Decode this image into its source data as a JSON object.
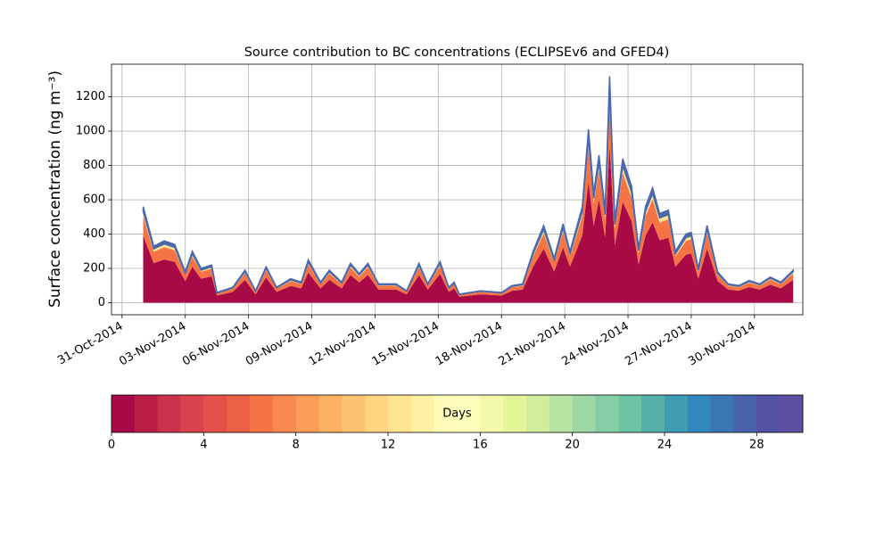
{
  "chart_data": {
    "type": "stacked_area",
    "title": "Source contribution to BC concentrations (ECLIPSEv6 and GFED4)",
    "y_label": "Surface concentration (ng m⁻³)",
    "x": [
      "2014-11-01T00:00",
      "2014-11-01T12:00",
      "2014-11-02T00:00",
      "2014-11-02T12:00",
      "2014-11-03T00:00",
      "2014-11-03T08:00",
      "2014-11-03T18:00",
      "2014-11-04T06:00",
      "2014-11-04T12:00",
      "2014-11-05T06:00",
      "2014-11-05T20:00",
      "2014-11-06T08:00",
      "2014-11-06T20:00",
      "2014-11-07T08:00",
      "2014-11-08T00:00",
      "2014-11-08T12:00",
      "2014-11-08T20:00",
      "2014-11-09T10:00",
      "2014-11-09T20:00",
      "2014-11-10T10:00",
      "2014-11-10T20:00",
      "2014-11-11T06:00",
      "2014-11-11T16:00",
      "2014-11-12T04:00",
      "2014-11-13T00:00",
      "2014-11-13T12:00",
      "2014-11-14T02:00",
      "2014-11-14T12:00",
      "2014-11-15T02:00",
      "2014-11-15T12:00",
      "2014-11-15T18:00",
      "2014-11-16T00:00",
      "2014-11-17T00:00",
      "2014-11-18T00:00",
      "2014-11-18T12:00",
      "2014-11-19T00:00",
      "2014-11-19T12:00",
      "2014-11-20T00:00",
      "2014-11-20T12:00",
      "2014-11-20T22:00",
      "2014-11-21T06:00",
      "2014-11-21T20:00",
      "2014-11-22T03:00",
      "2014-11-22T09:00",
      "2014-11-22T15:00",
      "2014-11-22T22:00",
      "2014-11-23T03:00",
      "2014-11-23T09:00",
      "2014-11-23T18:00",
      "2014-11-24T04:00",
      "2014-11-24T12:00",
      "2014-11-24T20:00",
      "2014-11-25T04:00",
      "2014-11-25T12:00",
      "2014-11-25T22:00",
      "2014-11-26T06:00",
      "2014-11-26T18:00",
      "2014-11-27T00:00",
      "2014-11-27T08:00",
      "2014-11-27T18:00",
      "2014-11-28T06:00",
      "2014-11-28T18:00",
      "2014-11-29T06:00",
      "2014-11-29T18:00",
      "2014-11-30T06:00",
      "2014-11-30T18:00",
      "2014-12-01T06:00",
      "2014-12-01T20:00"
    ],
    "series": [
      {
        "color": "#a70a45",
        "values": [
          392,
          231,
          252,
          238,
          126,
          210,
          140,
          154,
          42,
          63,
          133,
          49,
          147,
          63,
          98,
          84,
          175,
          84,
          133,
          84,
          161,
          119,
          161,
          77,
          77,
          49,
          161,
          77,
          168,
          63,
          84,
          35,
          49,
          42,
          70,
          77,
          210,
          315,
          182,
          322,
          210,
          392,
          707,
          448,
          602,
          378,
          924,
          336,
          588,
          476,
          224,
          392,
          469,
          364,
          378,
          210,
          280,
          287,
          140,
          315,
          126,
          77,
          70,
          91,
          77,
          105,
          84,
          133
        ]
      },
      {
        "color": "#f57446",
        "values": [
          112,
          66,
          72,
          68,
          36,
          60,
          40,
          44,
          12,
          18,
          38,
          14,
          42,
          18,
          28,
          24,
          50,
          24,
          38,
          24,
          46,
          34,
          46,
          22,
          22,
          14,
          46,
          22,
          48,
          18,
          24,
          10,
          14,
          12,
          20,
          22,
          60,
          90,
          52,
          92,
          60,
          112,
          202,
          128,
          172,
          108,
          264,
          96,
          168,
          136,
          64,
          112,
          134,
          104,
          108,
          60,
          80,
          82,
          40,
          90,
          36,
          22,
          20,
          26,
          22,
          30,
          24,
          38
        ]
      },
      {
        "color": "#fee391",
        "values": [
          28,
          17,
          18,
          17,
          9,
          15,
          10,
          11,
          3,
          5,
          10,
          4,
          11,
          5,
          7,
          6,
          13,
          6,
          10,
          6,
          12,
          9,
          12,
          6,
          6,
          4,
          12,
          6,
          12,
          5,
          6,
          3,
          4,
          3,
          5,
          6,
          15,
          23,
          13,
          23,
          15,
          28,
          51,
          32,
          43,
          27,
          66,
          24,
          42,
          34,
          16,
          28,
          34,
          26,
          27,
          15,
          20,
          21,
          10,
          23,
          9,
          6,
          5,
          7,
          6,
          8,
          6,
          10
        ]
      },
      {
        "color": "#4a68ad",
        "values": [
          28,
          16,
          18,
          17,
          9,
          15,
          10,
          11,
          3,
          4,
          9,
          3,
          10,
          4,
          7,
          6,
          12,
          6,
          9,
          6,
          11,
          8,
          11,
          5,
          5,
          3,
          11,
          5,
          12,
          4,
          6,
          2,
          3,
          3,
          5,
          5,
          15,
          22,
          13,
          23,
          15,
          28,
          50,
          32,
          43,
          27,
          66,
          24,
          42,
          34,
          16,
          28,
          33,
          26,
          27,
          15,
          20,
          20,
          10,
          22,
          9,
          5,
          5,
          6,
          5,
          7,
          6,
          9
        ]
      }
    ],
    "xlim": [
      "2014-10-30T12:00",
      "2014-12-02T07:00"
    ],
    "xticks": [
      {
        "value": "2014-10-31T00:00",
        "label": "31-Oct-2014"
      },
      {
        "value": "2014-11-03T00:00",
        "label": "03-Nov-2014"
      },
      {
        "value": "2014-11-06T00:00",
        "label": "06-Nov-2014"
      },
      {
        "value": "2014-11-09T00:00",
        "label": "09-Nov-2014"
      },
      {
        "value": "2014-11-12T00:00",
        "label": "12-Nov-2014"
      },
      {
        "value": "2014-11-15T00:00",
        "label": "15-Nov-2014"
      },
      {
        "value": "2014-11-18T00:00",
        "label": "18-Nov-2014"
      },
      {
        "value": "2014-11-21T00:00",
        "label": "21-Nov-2014"
      },
      {
        "value": "2014-11-24T00:00",
        "label": "24-Nov-2014"
      },
      {
        "value": "2014-11-27T00:00",
        "label": "27-Nov-2014"
      },
      {
        "value": "2014-11-30T00:00",
        "label": "30-Nov-2014"
      }
    ],
    "ylim": [
      -70,
      1390
    ],
    "yticks": [
      0,
      200,
      400,
      600,
      800,
      1000,
      1200
    ],
    "grid": true,
    "colorbar": {
      "label": "Days",
      "lim": [
        0,
        30
      ],
      "ticks": [
        0,
        4,
        8,
        12,
        16,
        20,
        24,
        28
      ],
      "colors": [
        "#a70a45",
        "#ba1e47",
        "#cb334c",
        "#d8434e",
        "#e2524a",
        "#ec6145",
        "#f57446",
        "#f88a50",
        "#fb9d59",
        "#fdb163",
        "#fdc372",
        "#fed481",
        "#fee391",
        "#fff0a6",
        "#fffbb8",
        "#fbfdba",
        "#f1f9a9",
        "#e4f498",
        "#d1ec9c",
        "#b9e3a0",
        "#9fd8a4",
        "#84cea5",
        "#6cc4a5",
        "#56b0a9",
        "#3f9bb2",
        "#3288bd",
        "#3b76b4",
        "#4863ac",
        "#5652a3",
        "#5e4fa2"
      ]
    }
  }
}
